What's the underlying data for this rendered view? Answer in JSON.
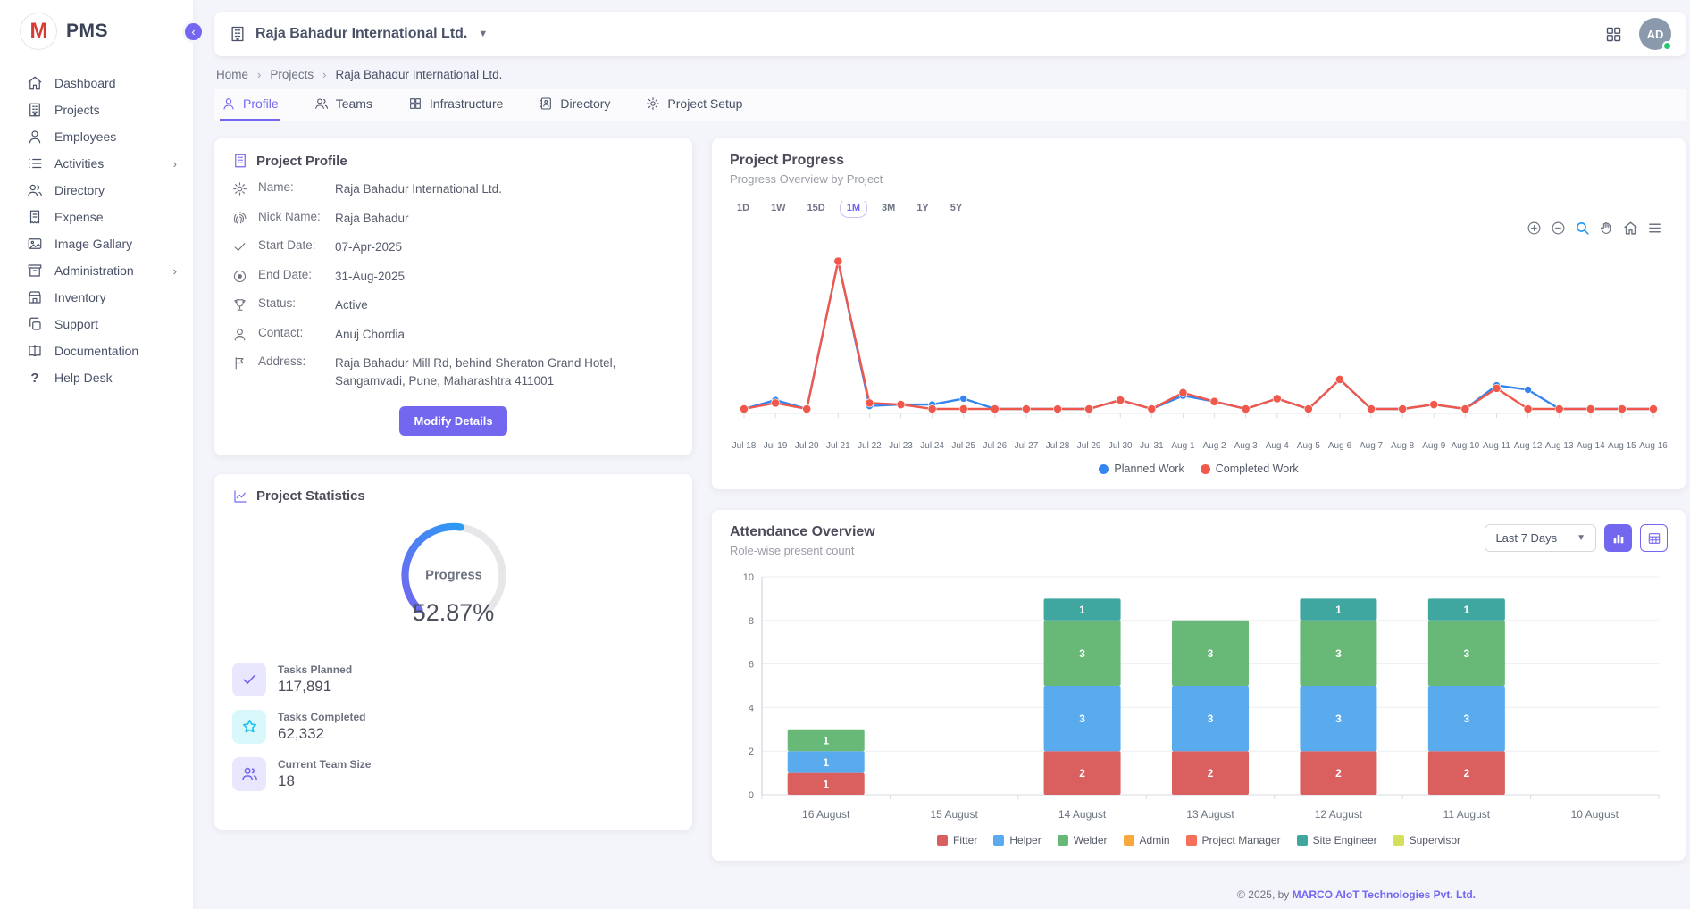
{
  "app": {
    "brand": "PMS",
    "logo_letter": "M",
    "accent_color": "#7367f0"
  },
  "sidebar": {
    "items": [
      {
        "label": "Dashboard",
        "icon": "home-icon"
      },
      {
        "label": "Projects",
        "icon": "building-icon"
      },
      {
        "label": "Employees",
        "icon": "user-icon"
      },
      {
        "label": "Activities",
        "icon": "list-icon",
        "has_submenu": true
      },
      {
        "label": "Directory",
        "icon": "users-icon"
      },
      {
        "label": "Expense",
        "icon": "receipt-icon"
      },
      {
        "label": "Image Gallary",
        "icon": "image-icon"
      },
      {
        "label": "Administration",
        "icon": "archive-icon",
        "has_submenu": true
      },
      {
        "label": "Inventory",
        "icon": "store-icon"
      },
      {
        "label": "Support",
        "icon": "copy-icon"
      },
      {
        "label": "Documentation",
        "icon": "book-icon"
      },
      {
        "label": "Help Desk",
        "icon": "question-icon"
      }
    ]
  },
  "header": {
    "company": "Raja Bahadur International Ltd.",
    "avatar_initials": "AD",
    "status_color": "#28c76f"
  },
  "breadcrumb": {
    "items": [
      "Home",
      "Projects",
      "Raja Bahadur International Ltd."
    ]
  },
  "tabs": [
    {
      "label": "Profile",
      "active": true
    },
    {
      "label": "Teams",
      "active": false
    },
    {
      "label": "Infrastructure",
      "active": false
    },
    {
      "label": "Directory",
      "active": false
    },
    {
      "label": "Project Setup",
      "active": false
    }
  ],
  "profile": {
    "title": "Project Profile",
    "fields": [
      {
        "label": "Name:",
        "value": "Raja Bahadur International Ltd."
      },
      {
        "label": "Nick Name:",
        "value": "Raja Bahadur"
      },
      {
        "label": "Start Date:",
        "value": "07-Apr-2025"
      },
      {
        "label": "End Date:",
        "value": "31-Aug-2025"
      },
      {
        "label": "Status:",
        "value": "Active"
      },
      {
        "label": "Contact:",
        "value": "Anuj Chordia"
      },
      {
        "label": "Address:",
        "value": "Raja Bahadur Mill Rd, behind Sheraton Grand Hotel, Sangamvadi, Pune, Maharashtra 411001"
      }
    ],
    "button": "Modify Details"
  },
  "statistics": {
    "title": "Project Statistics",
    "gauge_label": "Progress",
    "progress_pct": "52.87%",
    "progress_value": 52.87,
    "stats": [
      {
        "label": "Tasks Planned",
        "value": "117,891",
        "icon": "check-icon"
      },
      {
        "label": "Tasks Completed",
        "value": "62,332",
        "icon": "star-icon"
      },
      {
        "label": "Current Team Size",
        "value": "18",
        "icon": "team-icon"
      }
    ]
  },
  "progress_card": {
    "title": "Project Progress",
    "subtitle": "Progress Overview by Project",
    "ranges": [
      "1D",
      "1W",
      "15D",
      "1M",
      "3M",
      "1Y",
      "5Y"
    ],
    "active_range": "1M"
  },
  "attendance_card": {
    "title": "Attendance Overview",
    "subtitle": "Role-wise present count",
    "filter": "Last 7 Days"
  },
  "footer": {
    "copyright": "© 2025, by",
    "company": "MARCO AIoT Technologies Pvt. Ltd."
  },
  "chart_data": [
    {
      "type": "line",
      "title": "Project Progress",
      "x": [
        "Jul 18",
        "Jul 19",
        "Jul 20",
        "Jul 21",
        "Jul 22",
        "Jul 23",
        "Jul 24",
        "Jul 25",
        "Jul 26",
        "Jul 27",
        "Jul 28",
        "Jul 29",
        "Jul 30",
        "Jul 31",
        "Aug 1",
        "Aug 2",
        "Aug 3",
        "Aug 4",
        "Aug 5",
        "Aug 6",
        "Aug 7",
        "Aug 8",
        "Aug 9",
        "Aug 10",
        "Aug 11",
        "Aug 12",
        "Aug 13",
        "Aug 14",
        "Aug 15",
        "Aug 16"
      ],
      "ymax": 110,
      "legend_position": "bottom",
      "series": [
        {
          "name": "Planned Work",
          "color": "#3585f0",
          "values": [
            0,
            6,
            0,
            100,
            2,
            3,
            3,
            7,
            0,
            0,
            0,
            0,
            6,
            0,
            9,
            5,
            0,
            7,
            0,
            20,
            0,
            0,
            3,
            0,
            16,
            13,
            0,
            0,
            0,
            0
          ]
        },
        {
          "name": "Completed Work",
          "color": "#f0584b",
          "values": [
            0,
            4,
            0,
            100,
            4,
            3,
            0,
            0,
            0,
            0,
            0,
            0,
            6,
            0,
            11,
            5,
            0,
            7,
            0,
            20,
            0,
            0,
            3,
            0,
            14,
            0,
            0,
            0,
            0,
            0
          ]
        }
      ]
    },
    {
      "type": "bar",
      "stacked": true,
      "title": "Attendance Overview",
      "categories": [
        "16 August",
        "15 August",
        "14 August",
        "13 August",
        "12 August",
        "11 August",
        "10 August"
      ],
      "ylim": [
        0,
        10
      ],
      "yticks": [
        0,
        2,
        4,
        6,
        8,
        10
      ],
      "grid": true,
      "legend_position": "bottom",
      "series": [
        {
          "name": "Fitter",
          "color": "#d9605f",
          "values": [
            1,
            0,
            2,
            2,
            2,
            2,
            0
          ]
        },
        {
          "name": "Helper",
          "color": "#5aabee",
          "values": [
            1,
            0,
            3,
            3,
            3,
            3,
            0
          ]
        },
        {
          "name": "Welder",
          "color": "#68b978",
          "values": [
            1,
            0,
            3,
            3,
            3,
            3,
            0
          ]
        },
        {
          "name": "Admin",
          "color": "#f9a93c",
          "values": [
            0,
            0,
            0,
            0,
            0,
            0,
            0
          ]
        },
        {
          "name": "Project Manager",
          "color": "#f4705a",
          "values": [
            0,
            0,
            0,
            0,
            0,
            0,
            0
          ]
        },
        {
          "name": "Site Engineer",
          "color": "#3fa7a0",
          "values": [
            0,
            0,
            1,
            0,
            1,
            1,
            0
          ]
        },
        {
          "name": "Supervisor",
          "color": "#d3e05e",
          "values": [
            0,
            0,
            0,
            0,
            0,
            0,
            0
          ]
        }
      ]
    }
  ]
}
